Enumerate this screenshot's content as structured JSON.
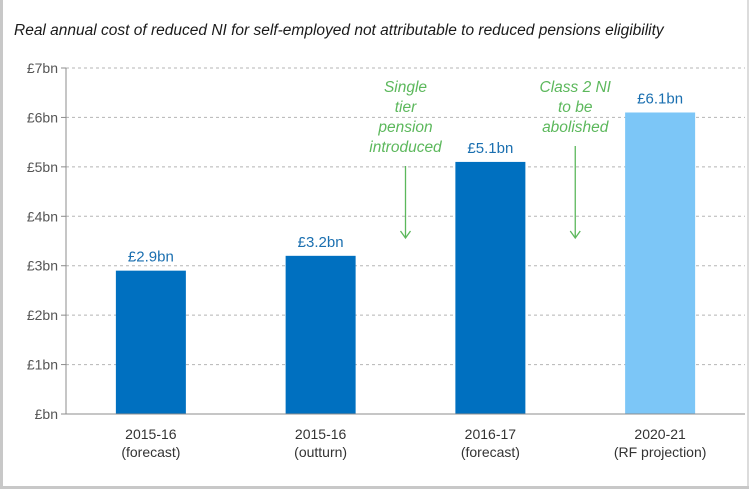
{
  "chart_data": {
    "type": "bar",
    "title": "Real annual cost of reduced NI for self-employed not attributable  to reduced pensions eligibility",
    "categories": [
      [
        "2015-16",
        "(forecast)"
      ],
      [
        "2015-16",
        "(outturn)"
      ],
      [
        "2016-17",
        "(forecast)"
      ],
      [
        "2020-21",
        "(RF projection)"
      ]
    ],
    "values": [
      2.9,
      3.2,
      5.1,
      6.1
    ],
    "data_labels": [
      "£2.9bn",
      "£3.2bn",
      "£5.1bn",
      "£6.1bn"
    ],
    "bar_colors": [
      "#0070c0",
      "#0070c0",
      "#0070c0",
      "#7cc6f7"
    ],
    "ylim": [
      0,
      7
    ],
    "yticks": [
      {
        "value": 0,
        "label": "£bn"
      },
      {
        "value": 1,
        "label": "£1bn"
      },
      {
        "value": 2,
        "label": "£2bn"
      },
      {
        "value": 3,
        "label": "£3bn"
      },
      {
        "value": 4,
        "label": "£4bn"
      },
      {
        "value": 5,
        "label": "£5bn"
      },
      {
        "value": 6,
        "label": "£6bn"
      },
      {
        "value": 7,
        "label": "£7bn"
      }
    ],
    "xlabel": "",
    "ylabel": "",
    "grid": true,
    "annotations": [
      {
        "lines": [
          "Single",
          "tier",
          "pension",
          "introduced"
        ],
        "between": [
          1,
          2
        ],
        "color": "#5cb85c"
      },
      {
        "lines": [
          "Class 2 NI",
          "to be",
          "abolished"
        ],
        "between": [
          2,
          3
        ],
        "color": "#5cb85c"
      }
    ]
  }
}
